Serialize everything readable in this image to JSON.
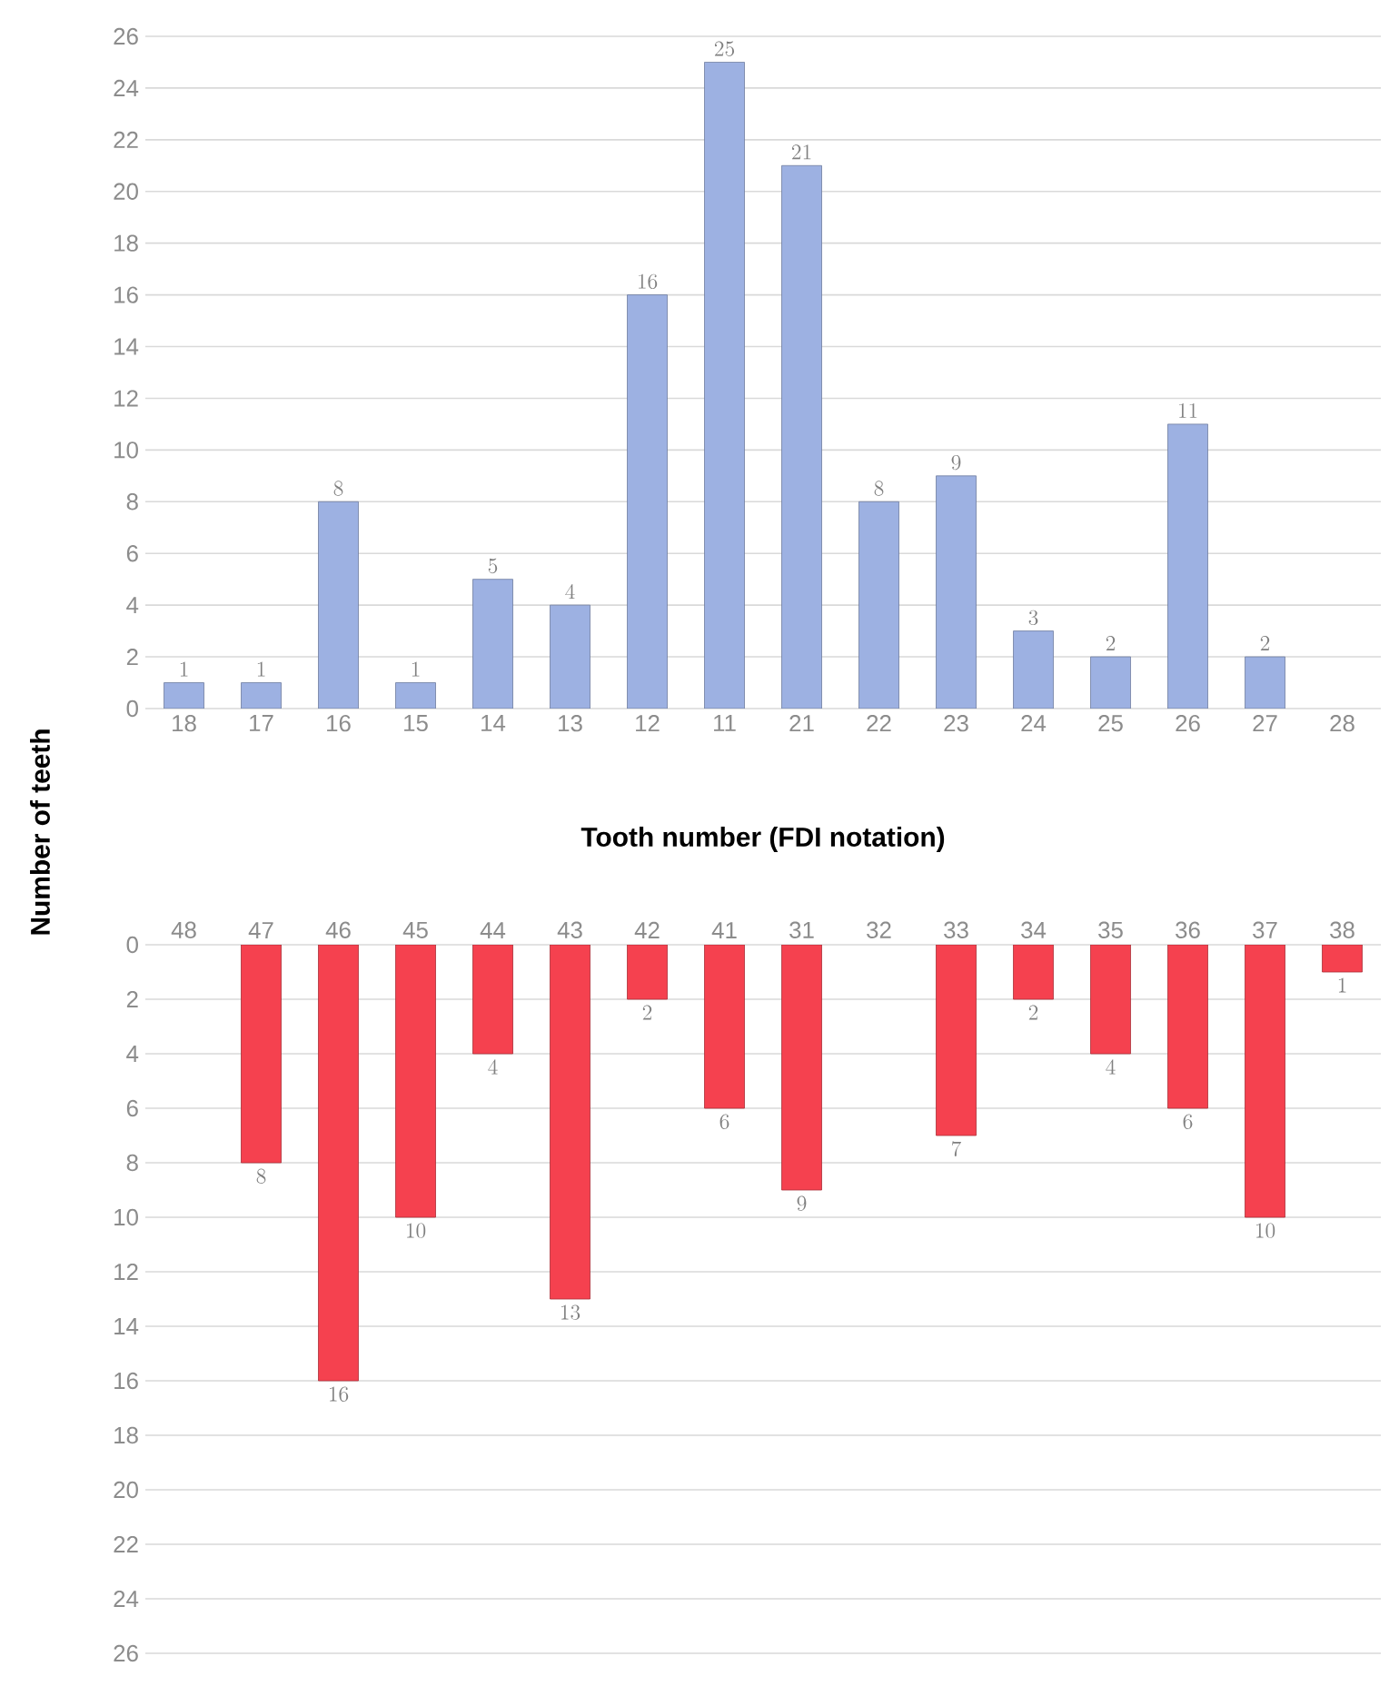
{
  "chart_data": [
    {
      "type": "bar",
      "xlabel": "Tooth number (FDI notation)",
      "ylabel": "Number of teeth",
      "categories": [
        "18",
        "17",
        "16",
        "15",
        "14",
        "13",
        "12",
        "11",
        "21",
        "22",
        "23",
        "24",
        "25",
        "26",
        "27",
        "28"
      ],
      "values": [
        1,
        1,
        8,
        1,
        5,
        4,
        16,
        25,
        21,
        8,
        9,
        3,
        2,
        11,
        2,
        null
      ],
      "color": "#9db1e2",
      "ylim": [
        0,
        26
      ],
      "yticks": [
        0,
        2,
        4,
        6,
        8,
        10,
        12,
        14,
        16,
        18,
        20,
        22,
        24,
        26
      ],
      "grid": "y",
      "data_labels": true
    },
    {
      "type": "bar",
      "categories": [
        "48",
        "47",
        "46",
        "45",
        "44",
        "43",
        "42",
        "41",
        "31",
        "32",
        "33",
        "34",
        "35",
        "36",
        "37",
        "38"
      ],
      "values": [
        null,
        8,
        16,
        10,
        4,
        13,
        2,
        6,
        9,
        null,
        7,
        2,
        4,
        6,
        10,
        1
      ],
      "color": "#f5414f",
      "ylim": [
        26,
        0
      ],
      "yticks": [
        0,
        2,
        4,
        6,
        8,
        10,
        12,
        14,
        16,
        18,
        20,
        22,
        24,
        26
      ],
      "grid": "y",
      "data_labels": true
    }
  ]
}
